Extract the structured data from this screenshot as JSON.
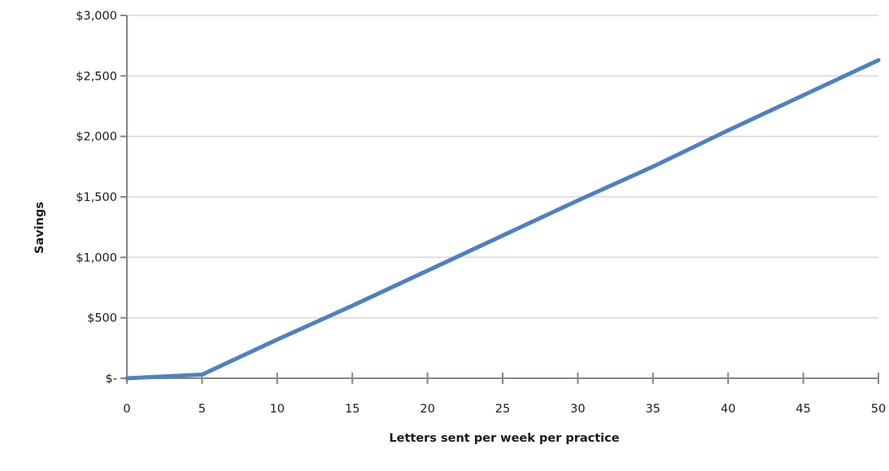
{
  "chart_data": {
    "type": "line",
    "xlabel": "Letters sent per week per practice",
    "ylabel": "Savings",
    "x": [
      0,
      5,
      10,
      15,
      20,
      25,
      30,
      35,
      40,
      45,
      50
    ],
    "x_tick_labels": [
      "0",
      "5",
      "10",
      "15",
      "20",
      "25",
      "30",
      "35",
      "40",
      "45",
      "50"
    ],
    "y_ticks": [
      0,
      500,
      1000,
      1500,
      2000,
      2500,
      3000
    ],
    "y_tick_labels": [
      "$-",
      "$500",
      "$1,000",
      "$1,500",
      "$2,000",
      "$2,500",
      "$3,000"
    ],
    "xlim": [
      0,
      50
    ],
    "ylim": [
      0,
      3000
    ],
    "grid": true,
    "series": [
      {
        "values": [
          0,
          30,
          320,
          600,
          890,
          1180,
          1470,
          1750,
          2050,
          2340,
          2630
        ],
        "color": "#4f81bd"
      }
    ]
  }
}
